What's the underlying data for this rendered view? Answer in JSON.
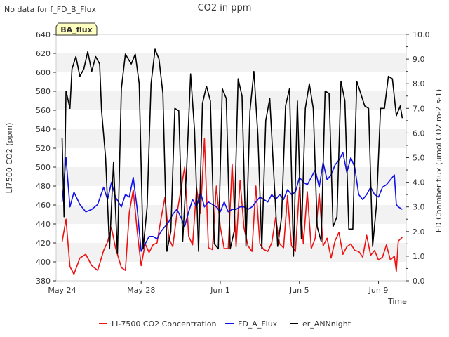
{
  "chart_data": {
    "type": "line",
    "title": "CO2 in ppm",
    "note": "No data for f_FD_B_Flux",
    "badge": "BA_flux",
    "xlabel": "Time",
    "ylabel_left": "LI7500 CO2 (ppm)",
    "ylabel_right": "FD Chamber flux (umol CO2 m-2 s-1)",
    "x_range_days": [
      23.7,
      41.4
    ],
    "x_ticks": [
      {
        "day": 24,
        "label": "May 24"
      },
      {
        "day": 28,
        "label": "May 28"
      },
      {
        "day": 32,
        "label": "Jun 1"
      },
      {
        "day": 36,
        "label": "Jun 5"
      },
      {
        "day": 40,
        "label": "Jun 9"
      }
    ],
    "ylim_left": [
      380,
      640
    ],
    "yticks_left": [
      "380",
      "400",
      "420",
      "440",
      "460",
      "480",
      "500",
      "520",
      "540",
      "560",
      "580",
      "600",
      "620",
      "640"
    ],
    "ylim_right": [
      0,
      10
    ],
    "yticks_right": [
      "0.0",
      "1.0",
      "2.0",
      "3.0",
      "4.0",
      "5.0",
      "6.0",
      "7.0",
      "8.0",
      "9.0",
      "10.0"
    ],
    "grid": "horizontal bands",
    "legend_position": "bottom",
    "series": [
      {
        "name": "LI-7500 CO2 Concentration",
        "color": "#ee1111",
        "axis": "left",
        "x": [
          24.0,
          24.2,
          24.4,
          24.6,
          24.9,
          25.2,
          25.5,
          25.8,
          26.1,
          26.3,
          26.5,
          26.7,
          27.0,
          27.2,
          27.4,
          27.6,
          27.8,
          28.0,
          28.2,
          28.4,
          28.6,
          28.8,
          29.0,
          29.2,
          29.4,
          29.6,
          29.8,
          30.0,
          30.2,
          30.4,
          30.6,
          30.8,
          31.0,
          31.2,
          31.4,
          31.6,
          31.8,
          32.0,
          32.2,
          32.4,
          32.6,
          32.8,
          33.0,
          33.2,
          33.4,
          33.6,
          33.8,
          34.0,
          34.2,
          34.4,
          34.6,
          34.8,
          35.0,
          35.2,
          35.4,
          35.6,
          35.8,
          36.0,
          36.2,
          36.4,
          36.6,
          36.8,
          37.0,
          37.2,
          37.4,
          37.6,
          37.8,
          38.0,
          38.2,
          38.4,
          38.6,
          38.8,
          39.0,
          39.2,
          39.4,
          39.6,
          39.8,
          40.0,
          40.2,
          40.4,
          40.6,
          40.8,
          40.9,
          41.0,
          41.2
        ],
        "values": [
          421,
          445,
          395,
          387,
          404,
          408,
          396,
          391,
          412,
          421,
          436,
          415,
          394,
          391,
          452,
          476,
          432,
          396,
          419,
          410,
          418,
          420,
          445,
          468,
          425,
          416,
          450,
          475,
          500,
          427,
          418,
          478,
          451,
          530,
          415,
          413,
          480,
          437,
          414,
          414,
          503,
          416,
          486,
          436,
          417,
          411,
          480,
          419,
          413,
          411,
          420,
          447,
          419,
          415,
          470,
          417,
          411,
          478,
          419,
          474,
          414,
          425,
          472,
          417,
          425,
          404,
          422,
          431,
          408,
          416,
          419,
          412,
          411,
          405,
          428,
          407,
          412,
          402,
          405,
          418,
          402,
          406,
          390,
          422,
          426
        ]
      },
      {
        "name": "FD_A_Flux",
        "color": "#1111ee",
        "axis": "right",
        "x": [
          24.0,
          24.2,
          24.4,
          24.6,
          24.9,
          25.2,
          25.5,
          25.8,
          26.1,
          26.3,
          26.5,
          26.7,
          27.0,
          27.2,
          27.4,
          27.6,
          27.8,
          28.0,
          28.2,
          28.4,
          28.6,
          28.8,
          29.0,
          29.2,
          29.4,
          29.6,
          29.8,
          30.0,
          30.2,
          30.4,
          30.6,
          30.8,
          31.0,
          31.2,
          31.4,
          31.6,
          31.8,
          32.0,
          32.2,
          32.4,
          32.6,
          32.8,
          33.0,
          33.2,
          33.4,
          33.6,
          33.8,
          34.0,
          34.2,
          34.4,
          34.6,
          34.8,
          35.0,
          35.2,
          35.4,
          35.6,
          35.8,
          36.0,
          36.2,
          36.4,
          36.6,
          36.8,
          37.0,
          37.2,
          37.4,
          37.6,
          37.8,
          38.0,
          38.2,
          38.4,
          38.6,
          38.8,
          39.0,
          39.2,
          39.4,
          39.6,
          39.8,
          40.0,
          40.2,
          40.4,
          40.6,
          40.8,
          40.9,
          41.0,
          41.2
        ],
        "values": [
          3.2,
          5.0,
          3.0,
          3.6,
          3.1,
          2.8,
          2.9,
          3.1,
          3.8,
          3.3,
          4.0,
          3.4,
          3.0,
          3.5,
          3.4,
          4.2,
          2.9,
          1.2,
          1.5,
          1.8,
          1.8,
          1.7,
          2.0,
          2.2,
          2.4,
          2.7,
          2.9,
          2.6,
          2.2,
          2.8,
          3.3,
          3.0,
          3.6,
          3.0,
          3.2,
          3.1,
          3.0,
          2.8,
          3.2,
          2.8,
          2.9,
          2.9,
          3.0,
          3.0,
          2.9,
          3.0,
          3.2,
          3.4,
          3.3,
          3.2,
          3.5,
          3.3,
          3.5,
          3.3,
          3.7,
          3.5,
          3.6,
          4.2,
          4.0,
          3.9,
          4.2,
          4.5,
          3.8,
          4.8,
          4.1,
          4.3,
          4.7,
          4.9,
          5.2,
          4.4,
          5.0,
          4.6,
          3.5,
          3.3,
          3.5,
          3.8,
          3.5,
          3.4,
          3.8,
          3.9,
          4.1,
          4.3,
          3.1,
          3.0,
          2.9
        ]
      },
      {
        "name": "er_ANNnight",
        "color": "#000000",
        "axis": "right",
        "x": [
          24.0,
          24.1,
          24.2,
          24.4,
          24.5,
          24.7,
          24.9,
          25.1,
          25.3,
          25.5,
          25.7,
          25.9,
          26.0,
          26.2,
          26.4,
          26.6,
          26.8,
          27.0,
          27.2,
          27.5,
          27.7,
          27.9,
          28.1,
          28.3,
          28.5,
          28.7,
          28.9,
          29.1,
          29.3,
          29.5,
          29.7,
          29.9,
          30.1,
          30.3,
          30.5,
          30.7,
          30.9,
          31.1,
          31.3,
          31.5,
          31.7,
          31.9,
          32.1,
          32.3,
          32.5,
          32.7,
          32.9,
          33.1,
          33.3,
          33.5,
          33.7,
          33.9,
          34.1,
          34.3,
          34.5,
          34.7,
          34.9,
          35.1,
          35.3,
          35.5,
          35.7,
          35.9,
          36.1,
          36.3,
          36.5,
          36.7,
          36.9,
          37.1,
          37.3,
          37.5,
          37.7,
          37.9,
          38.1,
          38.3,
          38.5,
          38.7,
          38.9,
          39.1,
          39.3,
          39.5,
          39.7,
          39.9,
          40.1,
          40.3,
          40.5,
          40.7,
          40.9,
          41.1,
          41.2
        ],
        "values": [
          5.8,
          2.6,
          7.7,
          7.0,
          8.6,
          9.1,
          8.3,
          8.6,
          9.3,
          8.5,
          9.1,
          8.8,
          6.9,
          5.0,
          1.3,
          4.8,
          1.1,
          7.8,
          9.2,
          8.8,
          9.2,
          8.0,
          1.3,
          3.0,
          8.0,
          9.4,
          9.0,
          7.6,
          1.2,
          2.0,
          7.0,
          6.9,
          1.6,
          4.6,
          8.4,
          6.1,
          1.2,
          7.2,
          7.9,
          7.3,
          1.5,
          1.3,
          7.8,
          7.4,
          1.3,
          2.0,
          8.2,
          7.5,
          1.4,
          6.9,
          8.5,
          5.9,
          1.3,
          6.5,
          7.4,
          4.4,
          1.4,
          2.6,
          7.1,
          7.8,
          1.0,
          7.3,
          1.7,
          7.0,
          8.0,
          7.0,
          2.2,
          1.6,
          7.7,
          7.6,
          2.2,
          2.6,
          8.1,
          7.3,
          2.1,
          2.1,
          8.1,
          7.6,
          7.1,
          7.0,
          1.4,
          3.1,
          7.0,
          7.0,
          8.3,
          8.2,
          6.7,
          7.1,
          6.6
        ]
      }
    ]
  }
}
